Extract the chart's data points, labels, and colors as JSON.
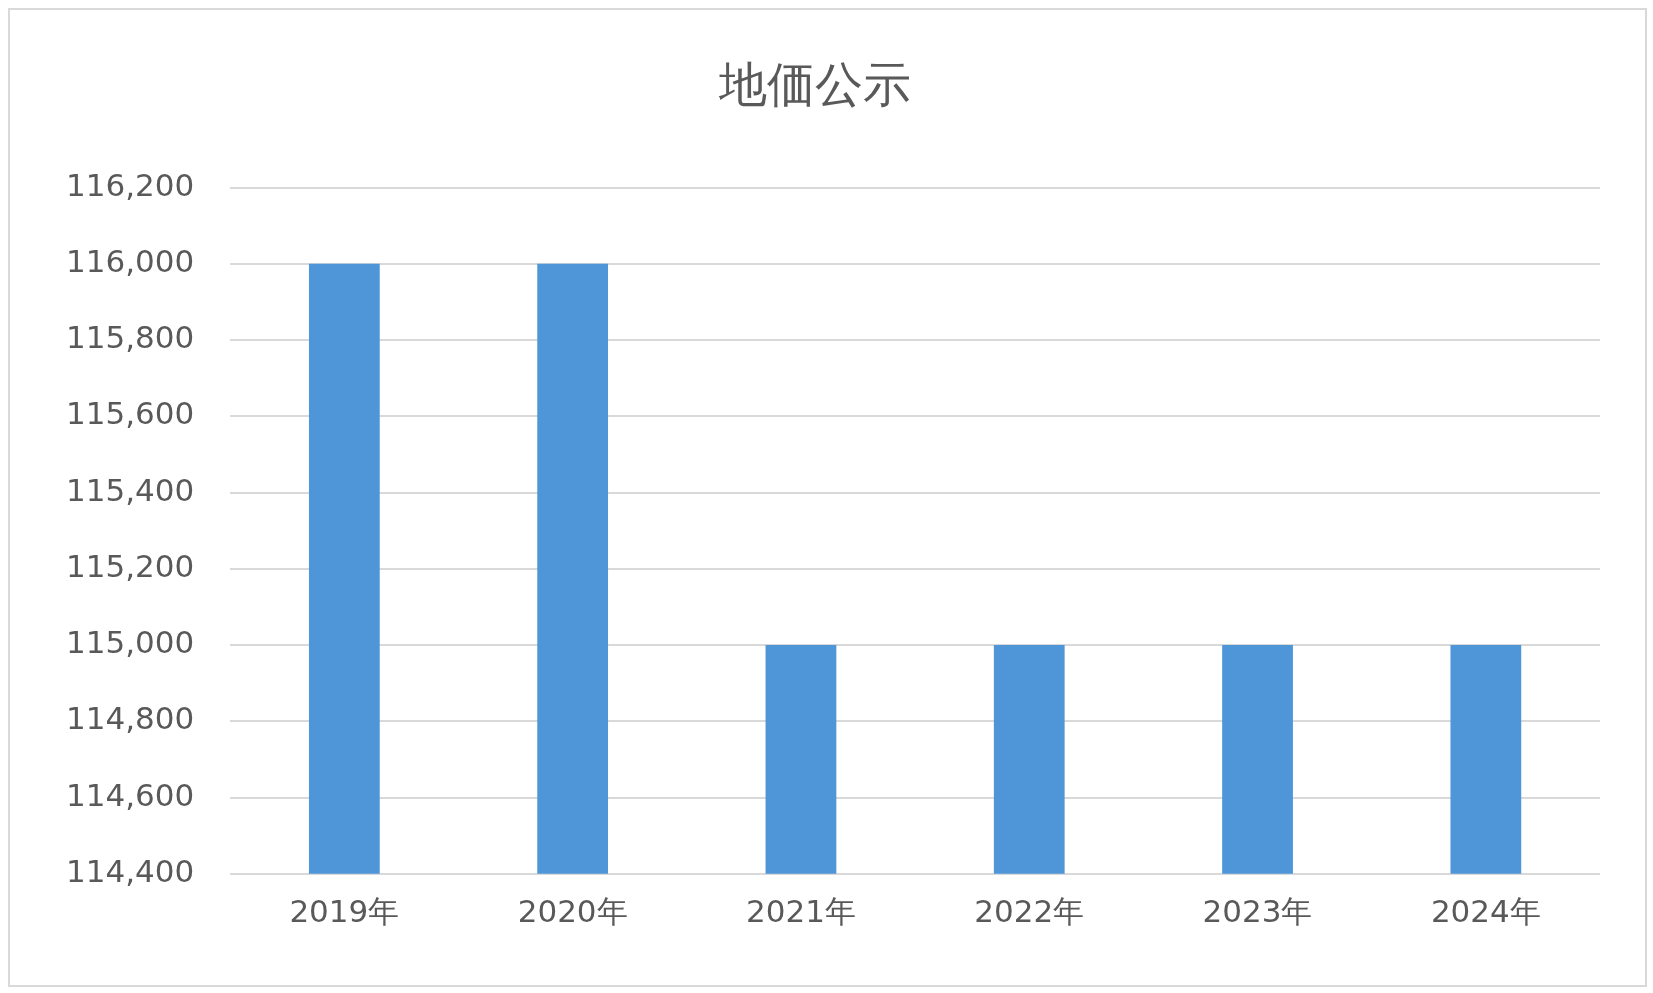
{
  "chart_data": {
    "type": "bar",
    "title": "地価公示",
    "categories": [
      "2019年",
      "2020年",
      "2021年",
      "2022年",
      "2023年",
      "2024年"
    ],
    "values": [
      116000,
      116000,
      115000,
      115000,
      115000,
      115000
    ],
    "color": "#4f96d9",
    "ylim": [
      114400,
      116200
    ],
    "yticks": [
      {
        "value": 114400,
        "label": "114,400"
      },
      {
        "value": 114600,
        "label": "114,600"
      },
      {
        "value": 114800,
        "label": "114,800"
      },
      {
        "value": 115000,
        "label": "115,000"
      },
      {
        "value": 115200,
        "label": "115,200"
      },
      {
        "value": 115400,
        "label": "115,400"
      },
      {
        "value": 115600,
        "label": "115,600"
      },
      {
        "value": 115800,
        "label": "115,800"
      },
      {
        "value": 116000,
        "label": "116,000"
      },
      {
        "value": 116200,
        "label": "116,200"
      }
    ],
    "grid": "y",
    "legend": false
  }
}
